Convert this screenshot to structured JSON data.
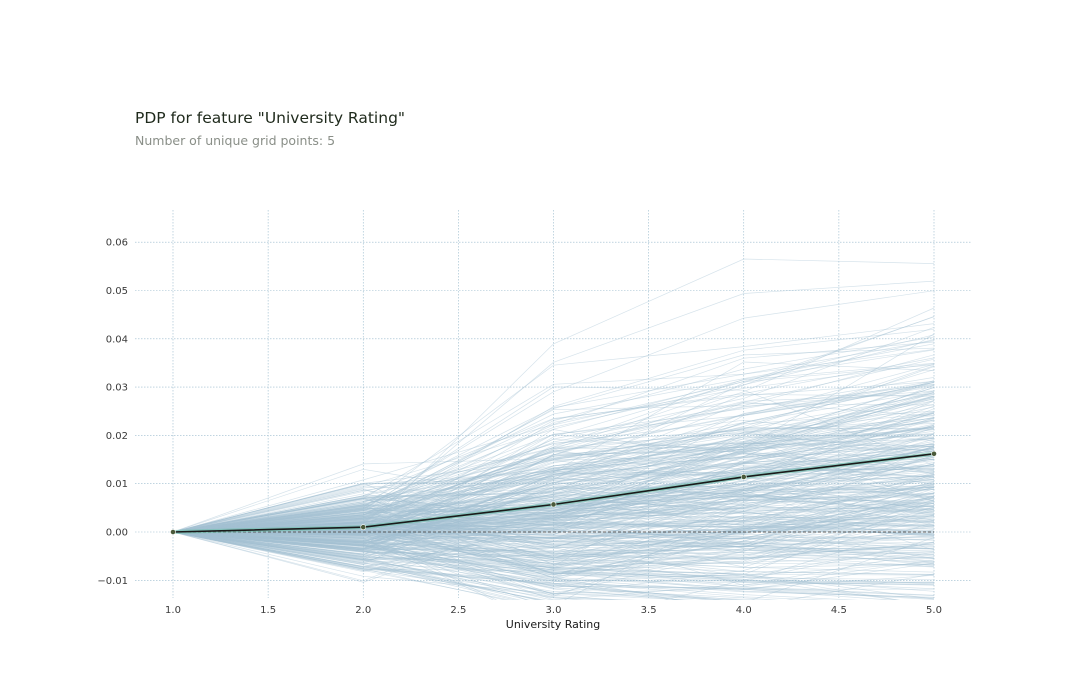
{
  "title": "PDP for feature \"University Rating\"",
  "subtitle": "Number of unique grid points: 5",
  "colors": {
    "ice_lines": "#a3c2d3",
    "pdp_line": "#1a1a1a",
    "pdp_band": "#66c2a5",
    "grid": "#8fb3c7",
    "zero_line": "#5a5a5a",
    "marker": "#4a5a3a"
  },
  "chart_data": {
    "type": "line",
    "title": "PDP for feature \"University Rating\"",
    "subtitle": "Number of unique grid points: 5",
    "xlabel": "University Rating",
    "ylabel": "",
    "xlim": [
      0.8,
      5.2
    ],
    "ylim": [
      -0.0145,
      0.0665
    ],
    "x_ticks": [
      1.0,
      1.5,
      2.0,
      2.5,
      3.0,
      3.5,
      4.0,
      4.5,
      5.0
    ],
    "x_tick_labels": [
      "1.0",
      "1.5",
      "2.0",
      "2.5",
      "3.0",
      "3.5",
      "4.0",
      "4.5",
      "5.0"
    ],
    "y_ticks": [
      -0.01,
      0.0,
      0.01,
      0.02,
      0.03,
      0.04,
      0.05,
      0.06
    ],
    "y_tick_labels": [
      "−0.01",
      "0.00",
      "0.01",
      "0.02",
      "0.03",
      "0.04",
      "0.05",
      "0.06"
    ],
    "grid": true,
    "series": [
      {
        "x": [
          1,
          2,
          3,
          4,
          5
        ],
        "values": [
          0.0,
          0.001,
          0.0057,
          0.0114,
          0.0162
        ]
      }
    ],
    "ice_lines": "many individual conditional expectation lines spanning approximately -0.015 to 0.058"
  }
}
